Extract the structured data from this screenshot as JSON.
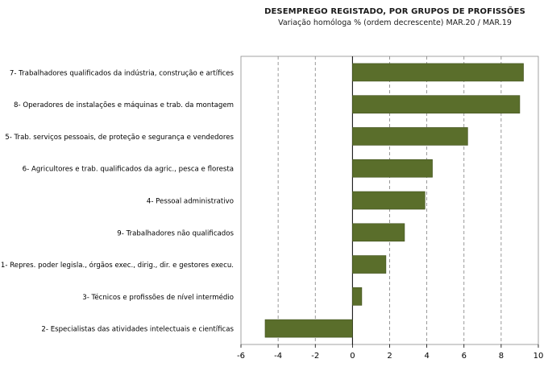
{
  "chart_data": {
    "type": "bar",
    "orientation": "horizontal",
    "title": "DESEMPREGO  REGISTADO, POR GRUPOS DE PROFISSÕES",
    "subtitle": "Variação homóloga %  (ordem decrescente)  MAR.20 / MAR.19",
    "categories": [
      "7- Trabalhadores qualificados da indústria, construção e artífices",
      "8- Operadores de instalações e máquinas e trab. da montagem",
      "5- Trab. serviços pessoais, de proteção e segurança e vendedores",
      "6- Agricultores e trab. qualificados da agric.,  pesca e floresta",
      "4- Pessoal administrativo",
      "9- Trabalhadores não qualificados",
      "1- Repres. poder legisla., órgãos exec., dirig., dir. e gestores execu.",
      "3- Técnicos e profissões de nível intermédio",
      "2- Especialistas das atividades intelectuais e científicas"
    ],
    "values": [
      9.2,
      9.0,
      6.2,
      4.3,
      3.9,
      2.8,
      1.8,
      0.5,
      -4.7
    ],
    "xlim": [
      -6,
      10
    ],
    "xticks": [
      "-6",
      "-4",
      "-2",
      "0",
      "2",
      "4",
      "6",
      "8",
      "10"
    ],
    "tick_values": [
      -6,
      -4,
      -2,
      0,
      2,
      4,
      6,
      8,
      10
    ],
    "grid": true,
    "legend": "none",
    "colors": {
      "bar": "#5a6e2b",
      "bar_edge": "#3f4f1c",
      "grid": "#7f7f7f",
      "axis": "#000000",
      "frame": "#8c8c8c"
    }
  }
}
